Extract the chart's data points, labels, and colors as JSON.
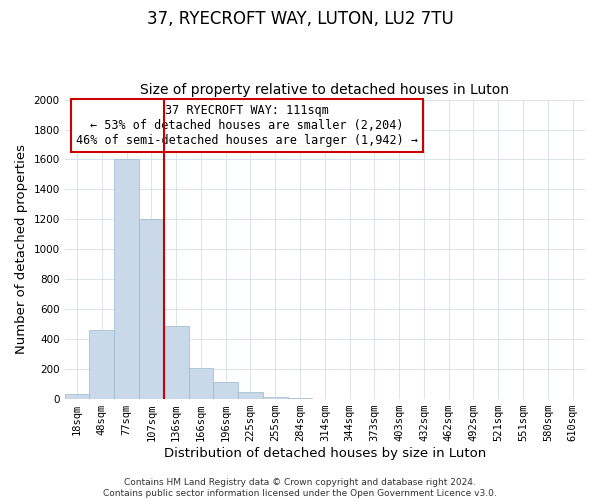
{
  "title": "37, RYECROFT WAY, LUTON, LU2 7TU",
  "subtitle": "Size of property relative to detached houses in Luton",
  "xlabel": "Distribution of detached houses by size in Luton",
  "ylabel": "Number of detached properties",
  "bar_labels": [
    "18sqm",
    "48sqm",
    "77sqm",
    "107sqm",
    "136sqm",
    "166sqm",
    "196sqm",
    "225sqm",
    "255sqm",
    "284sqm",
    "314sqm",
    "344sqm",
    "373sqm",
    "403sqm",
    "432sqm",
    "462sqm",
    "492sqm",
    "521sqm",
    "551sqm",
    "580sqm",
    "610sqm"
  ],
  "bar_values": [
    35,
    460,
    1600,
    1200,
    490,
    210,
    115,
    45,
    15,
    10,
    0,
    0,
    0,
    0,
    0,
    0,
    0,
    0,
    0,
    0,
    0
  ],
  "bar_color": "#c9d9ea",
  "bar_edge_color": "#9ab8cc",
  "vline_color": "#cc0000",
  "vline_index": 3,
  "ylim": [
    0,
    2000
  ],
  "yticks": [
    0,
    200,
    400,
    600,
    800,
    1000,
    1200,
    1400,
    1600,
    1800,
    2000
  ],
  "annotation_title": "37 RYECROFT WAY: 111sqm",
  "annotation_line1": "← 53% of detached houses are smaller (2,204)",
  "annotation_line2": "46% of semi-detached houses are larger (1,942) →",
  "annotation_box_color": "#ffffff",
  "annotation_box_edge": "#cc0000",
  "footer_line1": "Contains HM Land Registry data © Crown copyright and database right 2024.",
  "footer_line2": "Contains public sector information licensed under the Open Government Licence v3.0.",
  "title_fontsize": 12,
  "subtitle_fontsize": 10,
  "axis_label_fontsize": 9.5,
  "tick_fontsize": 7.5,
  "annotation_fontsize": 8.5,
  "footer_fontsize": 6.5,
  "grid_color": "#d4dde8"
}
